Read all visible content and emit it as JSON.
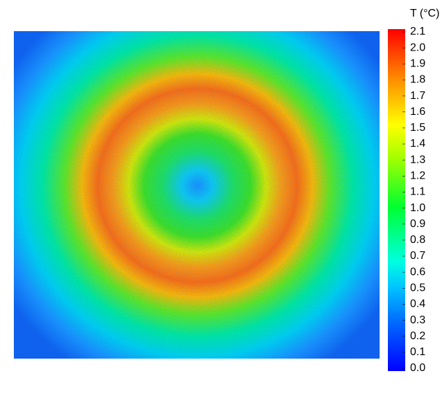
{
  "chart_data": {
    "type": "heatmap-image",
    "colorbar_title": "T (°C)",
    "clim": [
      0,
      2.1
    ],
    "cticks": [
      {
        "value": 0,
        "label": "0.0"
      },
      0.1,
      0.2,
      0.3,
      0.4,
      0.5,
      0.6,
      0.7,
      0.8,
      0.9,
      {
        "value": 1,
        "label": "1.0"
      },
      1.1,
      1.2,
      1.3,
      1.4,
      1.5,
      1.6,
      1.7,
      1.8,
      1.9,
      {
        "value": 2,
        "label": "2.0"
      },
      2.1
    ]
  }
}
